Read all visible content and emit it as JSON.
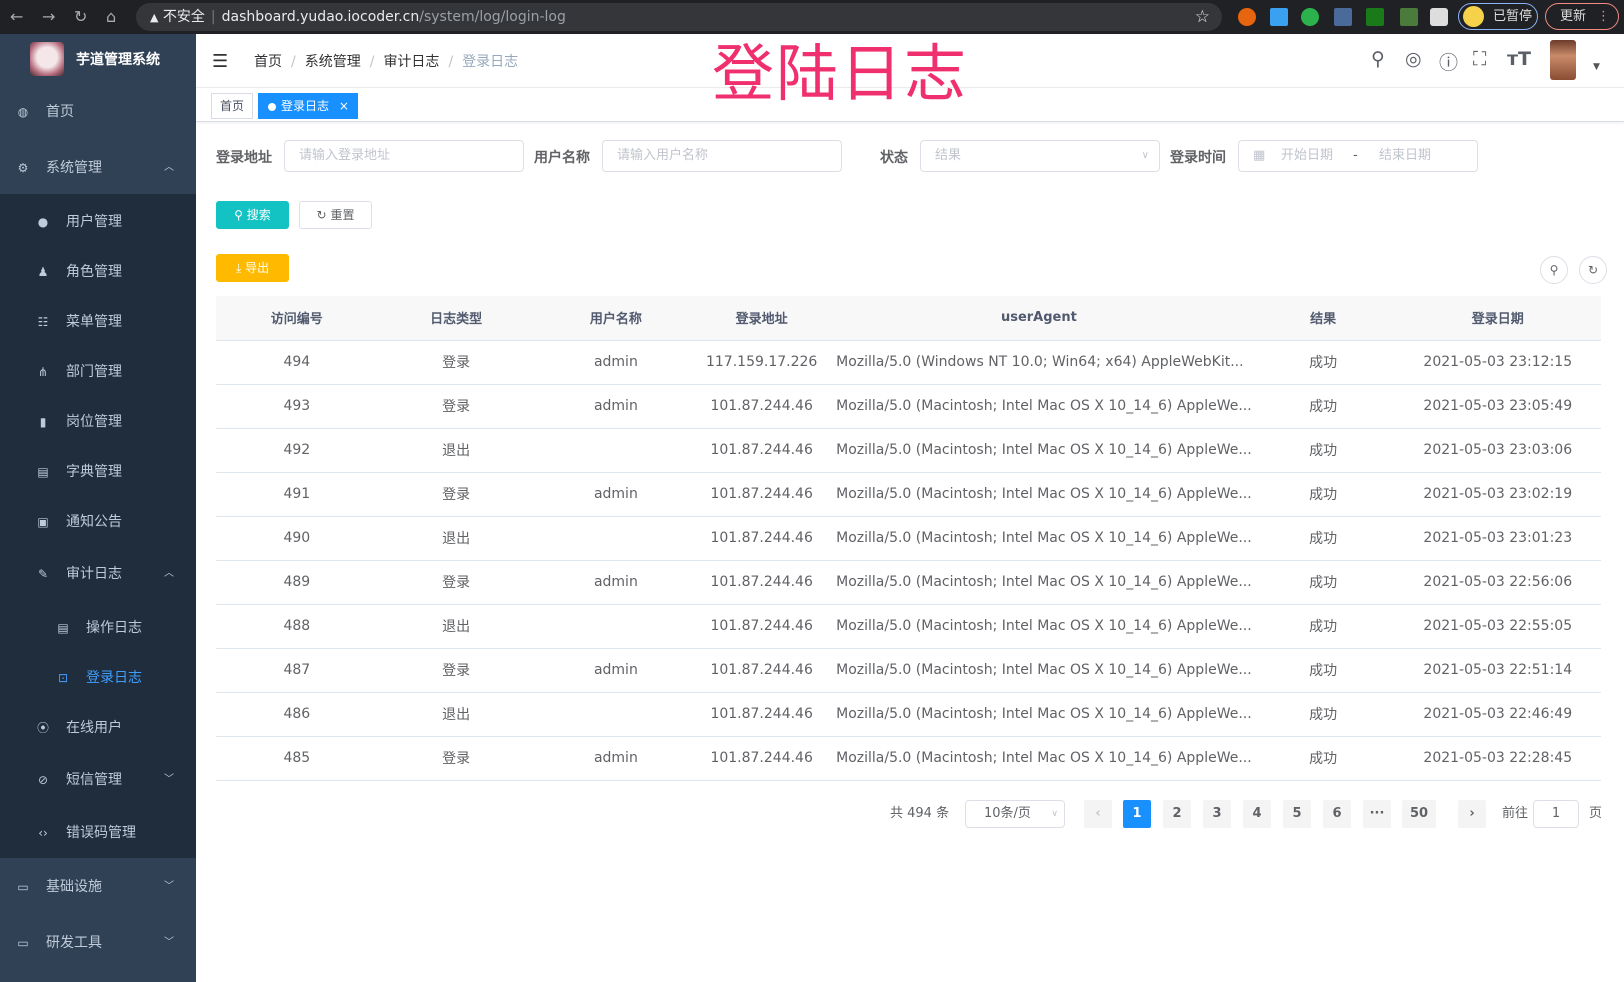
{
  "browser": {
    "back": "←",
    "forward": "→",
    "reload": "↻",
    "home": "⌂",
    "warning": "▲",
    "insecure": "不安全",
    "host": "dashboard.yudao.iocoder.cn",
    "path": "/system/log/login-log",
    "star": "☆",
    "paused": "已暂停",
    "update": "更新"
  },
  "sidebar": {
    "brand": "芋道管理系统",
    "items": [
      {
        "label": "首页",
        "icon": "dashboard-icon"
      },
      {
        "label": "系统管理",
        "icon": "gear-icon",
        "expanded": true
      },
      {
        "label": "用户管理",
        "icon": "user-icon"
      },
      {
        "label": "角色管理",
        "icon": "peoples-icon"
      },
      {
        "label": "菜单管理",
        "icon": "tree-table-icon"
      },
      {
        "label": "部门管理",
        "icon": "tree-icon"
      },
      {
        "label": "岗位管理",
        "icon": "post-icon"
      },
      {
        "label": "字典管理",
        "icon": "dict-icon"
      },
      {
        "label": "通知公告",
        "icon": "message-icon"
      },
      {
        "label": "审计日志",
        "icon": "log-icon",
        "expanded": true
      },
      {
        "label": "操作日志",
        "icon": "form-icon"
      },
      {
        "label": "登录日志",
        "icon": "logininfor-icon",
        "active": true
      },
      {
        "label": "在线用户",
        "icon": "online-icon"
      },
      {
        "label": "短信管理",
        "icon": "validCode-icon"
      },
      {
        "label": "错误码管理",
        "icon": "code-icon"
      },
      {
        "label": "基础设施",
        "icon": "monitor-icon"
      },
      {
        "label": "研发工具",
        "icon": "tool-icon"
      }
    ]
  },
  "breadcrumb": [
    "首页",
    "系统管理",
    "审计日志",
    "登录日志"
  ],
  "overlay_title": "登陆日志",
  "tags": {
    "home": "首页",
    "active": "登录日志",
    "close": "×"
  },
  "filters": {
    "address": {
      "label": "登录地址",
      "placeholder": "请输入登录地址"
    },
    "username": {
      "label": "用户名称",
      "placeholder": "请输入用户名称"
    },
    "status": {
      "label": "状态",
      "placeholder": "结果"
    },
    "time": {
      "label": "登录时间",
      "start": "开始日期",
      "sep": "-",
      "end": "结束日期"
    },
    "search": "搜索",
    "reset": "重置"
  },
  "export": "导出",
  "table": {
    "headers": [
      "访问编号",
      "日志类型",
      "用户名称",
      "登录地址",
      "userAgent",
      "结果",
      "登录日期"
    ],
    "rows": [
      [
        "494",
        "登录",
        "admin",
        "117.159.17.226",
        "Mozilla/5.0 (Windows NT 10.0; Win64; x64) AppleWebKit...",
        "成功",
        "2021-05-03 23:12:15"
      ],
      [
        "493",
        "登录",
        "admin",
        "101.87.244.46",
        "Mozilla/5.0 (Macintosh; Intel Mac OS X 10_14_6) AppleWe...",
        "成功",
        "2021-05-03 23:05:49"
      ],
      [
        "492",
        "退出",
        "",
        "101.87.244.46",
        "Mozilla/5.0 (Macintosh; Intel Mac OS X 10_14_6) AppleWe...",
        "成功",
        "2021-05-03 23:03:06"
      ],
      [
        "491",
        "登录",
        "admin",
        "101.87.244.46",
        "Mozilla/5.0 (Macintosh; Intel Mac OS X 10_14_6) AppleWe...",
        "成功",
        "2021-05-03 23:02:19"
      ],
      [
        "490",
        "退出",
        "",
        "101.87.244.46",
        "Mozilla/5.0 (Macintosh; Intel Mac OS X 10_14_6) AppleWe...",
        "成功",
        "2021-05-03 23:01:23"
      ],
      [
        "489",
        "登录",
        "admin",
        "101.87.244.46",
        "Mozilla/5.0 (Macintosh; Intel Mac OS X 10_14_6) AppleWe...",
        "成功",
        "2021-05-03 22:56:06"
      ],
      [
        "488",
        "退出",
        "",
        "101.87.244.46",
        "Mozilla/5.0 (Macintosh; Intel Mac OS X 10_14_6) AppleWe...",
        "成功",
        "2021-05-03 22:55:05"
      ],
      [
        "487",
        "登录",
        "admin",
        "101.87.244.46",
        "Mozilla/5.0 (Macintosh; Intel Mac OS X 10_14_6) AppleWe...",
        "成功",
        "2021-05-03 22:51:14"
      ],
      [
        "486",
        "退出",
        "",
        "101.87.244.46",
        "Mozilla/5.0 (Macintosh; Intel Mac OS X 10_14_6) AppleWe...",
        "成功",
        "2021-05-03 22:46:49"
      ],
      [
        "485",
        "登录",
        "admin",
        "101.87.244.46",
        "Mozilla/5.0 (Macintosh; Intel Mac OS X 10_14_6) AppleWe...",
        "成功",
        "2021-05-03 22:28:45"
      ]
    ]
  },
  "pagination": {
    "total": "共 494 条",
    "page_size": "10条/页",
    "prev": "‹",
    "next": "›",
    "pages": [
      "1",
      "2",
      "3",
      "4",
      "5",
      "6",
      "···",
      "50"
    ],
    "current": "1",
    "goto": "前往",
    "goto_value": "1",
    "page_unit": "页"
  },
  "colors": {
    "sidebar": "#304156",
    "submenu": "#1f2d3d",
    "primary": "#1890ff",
    "search": "#13c2c2",
    "export": "#ffba00",
    "overlay": "#f0306e"
  }
}
